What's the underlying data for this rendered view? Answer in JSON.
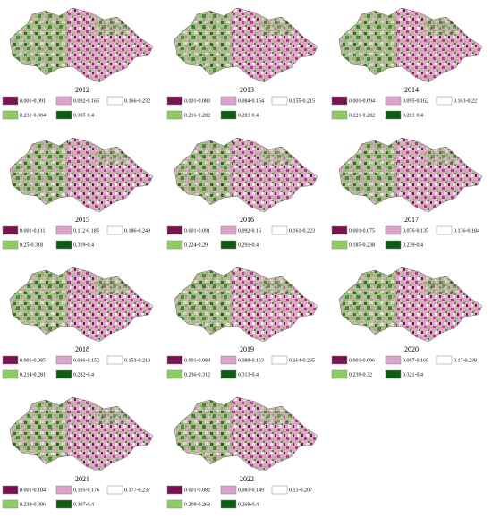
{
  "legend_colors": [
    "#7a1250",
    "#dba3cb",
    "#ffffff",
    "#8fcb63",
    "#0d5c12"
  ],
  "panels": [
    {
      "year": "2012",
      "legend": [
        "0.001-0.091",
        "0.092-0.165",
        "0.166-0.232",
        "0.233-0.304",
        "0.305-0.4"
      ]
    },
    {
      "year": "2013",
      "legend": [
        "0.001-0.083",
        "0.084-0.154",
        "0.155-0.215",
        "0.216-0.282",
        "0.283-0.4"
      ]
    },
    {
      "year": "2014",
      "legend": [
        "0.001-0.094",
        "0.095-0.162",
        "0.163-0.22",
        "0.221-0.282",
        "0.283-0.4"
      ]
    },
    {
      "year": "2015",
      "legend": [
        "0.001-0.111",
        "0.112-0.185",
        "0.186-0.249",
        "0.25-0.318",
        "0.319-0.4"
      ]
    },
    {
      "year": "2016",
      "legend": [
        "0.001-0.091",
        "0.092-0.16",
        "0.161-0.223",
        "0.224-0.29",
        "0.291-0.4"
      ]
    },
    {
      "year": "2017",
      "legend": [
        "0.001-0.075",
        "0.076-0.135",
        "0.136-0.184",
        "0.185-0.238",
        "0.239-0.4"
      ]
    },
    {
      "year": "2018",
      "legend": [
        "0.001-0.085",
        "0.086-0.152",
        "0.153-0.213",
        "0.214-0.281",
        "0.282-0.4"
      ]
    },
    {
      "year": "2019",
      "legend": [
        "0.001-0.088",
        "0.089-0.163",
        "0.164-0.235",
        "0.236-0.312",
        "0.313-0.4"
      ]
    },
    {
      "year": "2020",
      "legend": [
        "0.001-0.096",
        "0.097-0.169",
        "0.17-0.238",
        "0.239-0.32",
        "0.321-0.4"
      ]
    },
    {
      "year": "2021",
      "legend": [
        "0.001-0.104",
        "0.105-0.176",
        "0.177-0.237",
        "0.238-0.306",
        "0.307-0.4"
      ]
    },
    {
      "year": "2022",
      "legend": [
        "0.001-0.082",
        "0.083-0.149",
        "0.15-0.207",
        "0.208-0.268",
        "0.269-0.4"
      ]
    }
  ]
}
